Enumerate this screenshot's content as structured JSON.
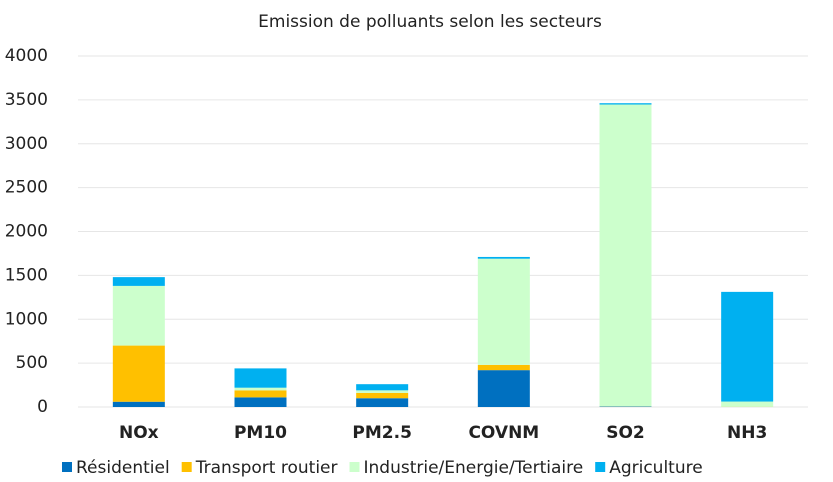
{
  "chart_data": {
    "type": "bar",
    "stacked": true,
    "title": "Emission de polluants selon les secteurs",
    "categories": [
      "NOx",
      "PM10",
      "PM2.5",
      "COVNM",
      "SO2",
      "NH3"
    ],
    "series": [
      {
        "name": "Résidentiel",
        "color": "#0070c0",
        "values": [
          60,
          110,
          100,
          420,
          5,
          0
        ]
      },
      {
        "name": "Transport routier",
        "color": "#ffc000",
        "values": [
          640,
          80,
          60,
          60,
          2,
          2
        ]
      },
      {
        "name": "Industrie/Energie/Tertiaire",
        "color": "#ccffcc",
        "values": [
          680,
          30,
          30,
          1210,
          3440,
          60
        ]
      },
      {
        "name": "Agriculture",
        "color": "#00b0f0",
        "values": [
          100,
          220,
          70,
          20,
          15,
          1250
        ]
      }
    ],
    "ylim": [
      0,
      4000
    ],
    "yticks": [
      0,
      500,
      1000,
      1500,
      2000,
      2500,
      3000,
      3500,
      4000
    ],
    "grid": true,
    "legend": "bottom"
  }
}
